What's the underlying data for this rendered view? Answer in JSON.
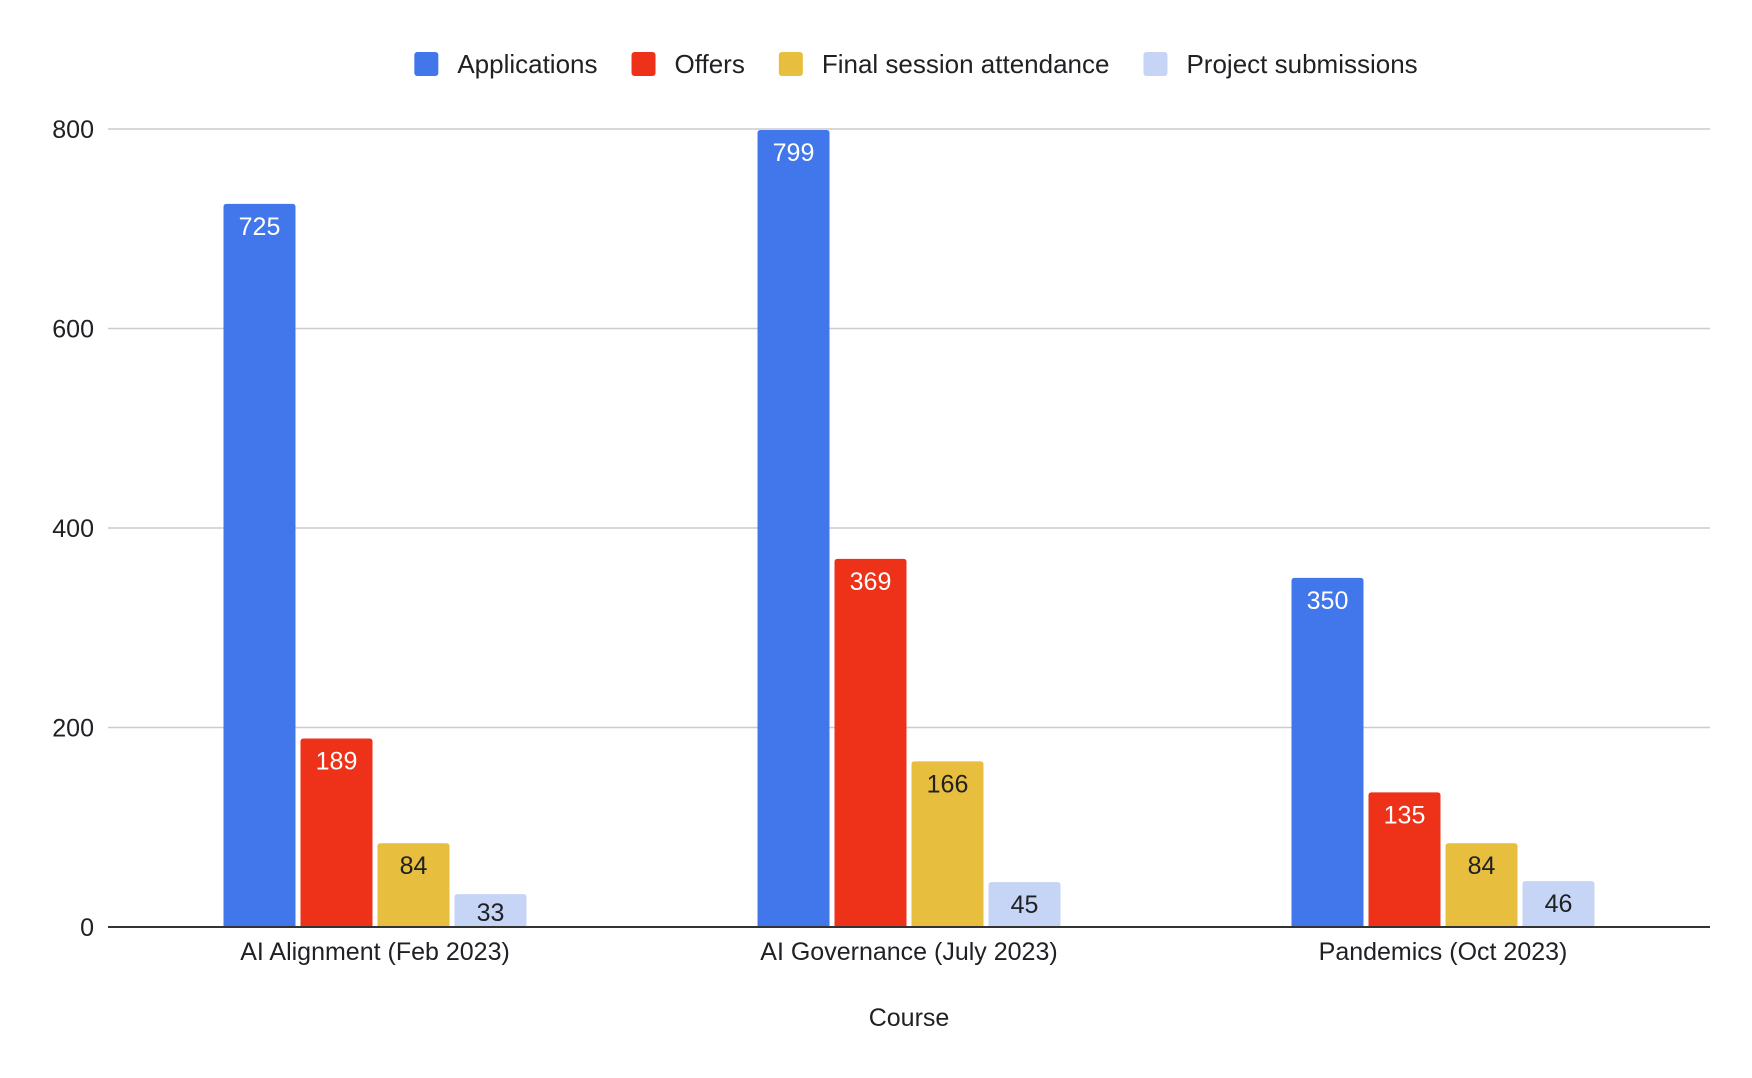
{
  "chart_data": {
    "type": "bar",
    "title": "",
    "xlabel": "Course",
    "ylabel": "",
    "ylim": [
      0,
      800
    ],
    "yticks": [
      0,
      200,
      400,
      600,
      800
    ],
    "grid": true,
    "legend_position": "top",
    "categories": [
      "AI Alignment (Feb 2023)",
      "AI Governance (July 2023)",
      "Pandemics (Oct 2023)"
    ],
    "series": [
      {
        "name": "Applications",
        "color": "#4277eb",
        "label_color": "#ffffff",
        "values": [
          725,
          799,
          350
        ]
      },
      {
        "name": "Offers",
        "color": "#ee3219",
        "label_color": "#ffffff",
        "values": [
          189,
          369,
          135
        ]
      },
      {
        "name": "Final session attendance",
        "color": "#e7be3e",
        "label_color": "#202124",
        "values": [
          84,
          166,
          84
        ]
      },
      {
        "name": "Project submissions",
        "color": "#c6d5f6",
        "label_color": "#202124",
        "values": [
          33,
          45,
          46
        ]
      }
    ]
  }
}
